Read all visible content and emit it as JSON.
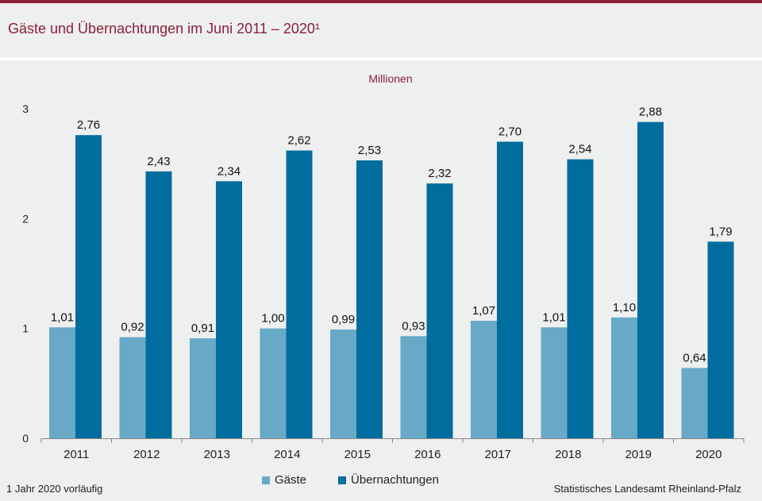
{
  "title": "Gäste und Übernachtungen im Juni 2011 – 2020¹",
  "footnote": "1 Jahr 2020 vorläufig",
  "source": "Statistisches Landesamt Rheinland-Pfalz",
  "colors": {
    "gaeste": "#68a9c8",
    "uebernachtungen": "#006d9e",
    "accent": "#8a1f3a"
  },
  "chart_data": {
    "type": "bar",
    "unit_label": "Millionen",
    "categories": [
      "2011",
      "2012",
      "2013",
      "2014",
      "2015",
      "2016",
      "2017",
      "2018",
      "2019",
      "2020"
    ],
    "series": [
      {
        "name": "Gäste",
        "values": [
          1.01,
          0.92,
          0.91,
          1.0,
          0.99,
          0.93,
          1.07,
          1.01,
          1.1,
          0.64
        ],
        "labels": [
          "1,01",
          "0,92",
          "0,91",
          "1,00",
          "0,99",
          "0,93",
          "1,07",
          "1,01",
          "1,10",
          "0,64"
        ]
      },
      {
        "name": "Übernachtungen",
        "values": [
          2.76,
          2.43,
          2.34,
          2.62,
          2.53,
          2.32,
          2.7,
          2.54,
          2.88,
          1.79
        ],
        "labels": [
          "2,76",
          "2,43",
          "2,34",
          "2,62",
          "2,53",
          "2,32",
          "2,70",
          "2,54",
          "2,88",
          "1,79"
        ]
      }
    ],
    "yticks": [
      "0",
      "1",
      "2",
      "3"
    ],
    "ylim": [
      0,
      3
    ],
    "grid": false,
    "legend": "bottom-center"
  }
}
